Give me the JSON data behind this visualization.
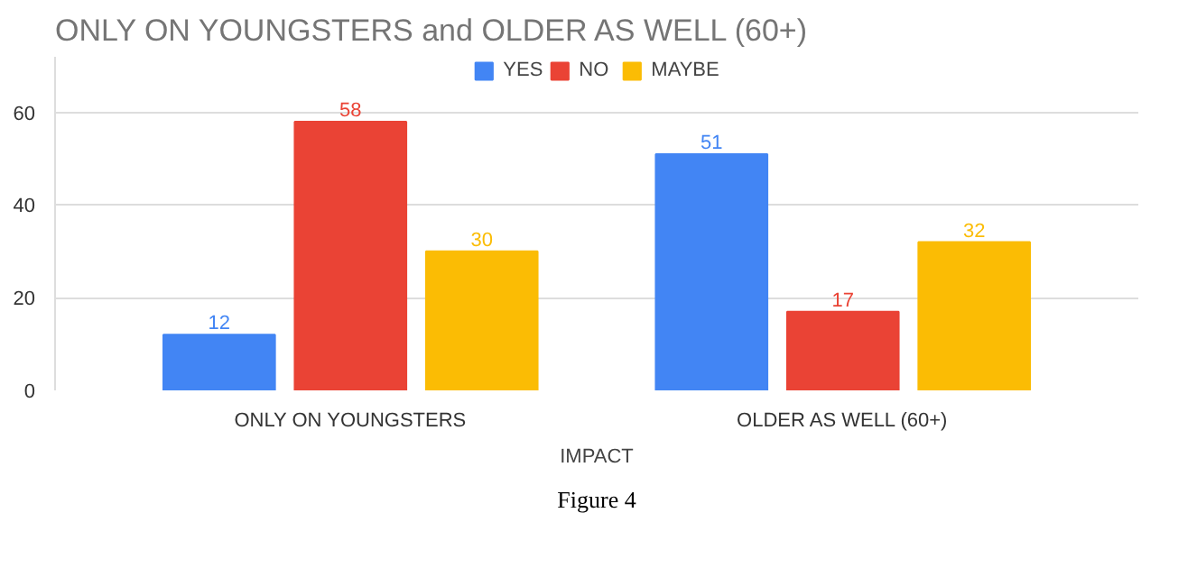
{
  "chart_data": {
    "type": "bar",
    "title": "ONLY ON YOUNGSTERS and OLDER AS WELL (60+)",
    "xlabel": "IMPACT",
    "categories": [
      "ONLY ON YOUNGSTERS",
      "OLDER AS WELL (60+)"
    ],
    "series": [
      {
        "name": "YES",
        "color": "#4285f4",
        "values": [
          12,
          51
        ]
      },
      {
        "name": "NO",
        "color": "#ea4335",
        "values": [
          58,
          17
        ]
      },
      {
        "name": "MAYBE",
        "color": "#fbbc04",
        "values": [
          30,
          32
        ]
      }
    ],
    "ylim": [
      0,
      72
    ],
    "yticks": [
      0,
      20,
      40,
      60
    ],
    "grid": "y",
    "legend": "top",
    "data_labels": true,
    "annotations": [
      "Figure 4"
    ]
  }
}
